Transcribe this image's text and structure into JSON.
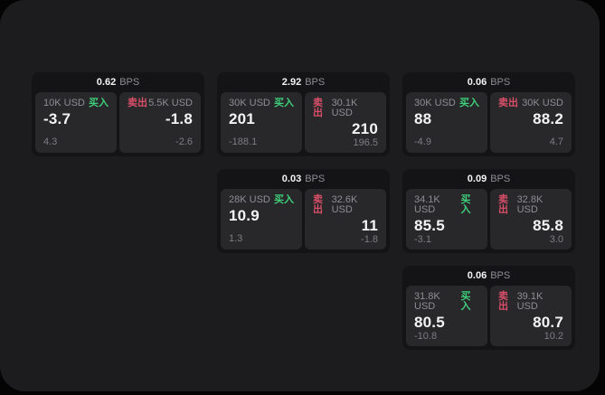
{
  "labels": {
    "unit": "BPS",
    "buy": "买入",
    "sell": "卖出"
  },
  "colors": {
    "panel_bg": "#1c1c1e",
    "card_bg": "#141416",
    "tile_bg": "#28282a",
    "buy": "#3ecf7a",
    "sell": "#d94f69",
    "text_primary": "#f4f4f6",
    "text_secondary": "#8e8e93",
    "text_muted": "#7d7d82"
  },
  "cards": [
    {
      "col": 1,
      "row": 1,
      "bps": "0.62",
      "buy": {
        "size": "10K USD",
        "price": "-3.7",
        "delta": "4.3"
      },
      "sell": {
        "size": "5.5K USD",
        "price": "-1.8",
        "delta": "-2.6"
      }
    },
    {
      "col": 2,
      "row": 1,
      "bps": "2.92",
      "buy": {
        "size": "30K USD",
        "price": "201",
        "delta": "-188.1"
      },
      "sell": {
        "size": "30.1K USD",
        "price": "210",
        "delta": "196.5"
      }
    },
    {
      "col": 3,
      "row": 1,
      "bps": "0.06",
      "buy": {
        "size": "30K USD",
        "price": "88",
        "delta": "-4.9"
      },
      "sell": {
        "size": "30K USD",
        "price": "88.2",
        "delta": "4.7"
      }
    },
    {
      "col": 2,
      "row": 2,
      "bps": "0.03",
      "buy": {
        "size": "28K USD",
        "price": "10.9",
        "delta": "1.3"
      },
      "sell": {
        "size": "32.6K USD",
        "price": "11",
        "delta": "-1.8"
      }
    },
    {
      "col": 3,
      "row": 2,
      "bps": "0.09",
      "buy": {
        "size": "34.1K USD",
        "price": "85.5",
        "delta": "-3.1"
      },
      "sell": {
        "size": "32.8K USD",
        "price": "85.8",
        "delta": "3.0"
      }
    },
    {
      "col": 3,
      "row": 3,
      "bps": "0.06",
      "buy": {
        "size": "31.8K USD",
        "price": "80.5",
        "delta": "-10.8"
      },
      "sell": {
        "size": "39.1K USD",
        "price": "80.7",
        "delta": "10.2"
      }
    }
  ]
}
